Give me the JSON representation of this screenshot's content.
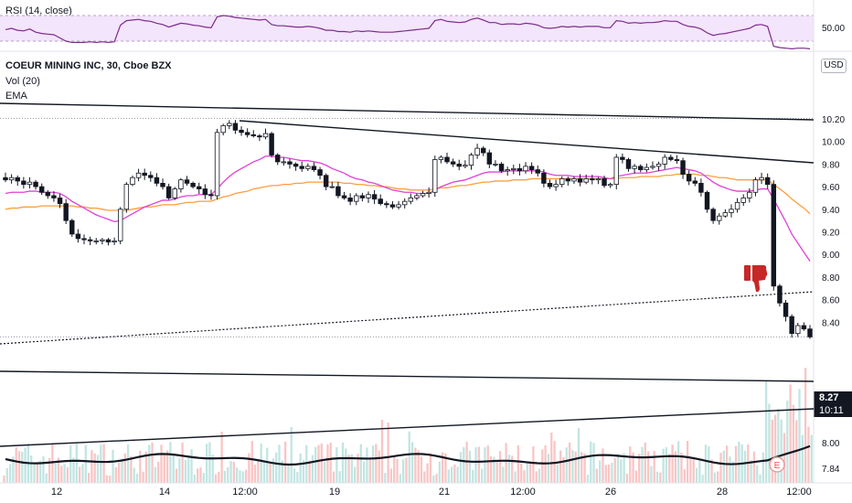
{
  "header": {
    "rsi_label": "RSI (14, close)",
    "title": "COEUR MINING INC, 30, Cboe BZX",
    "vol_label": "Vol (20)",
    "ema_label": "EMA"
  },
  "price_scale": {
    "currency": "USD",
    "rsi_tick": "50.00",
    "ticks": [
      "10.20",
      "10.00",
      "9.80",
      "9.60",
      "9.40",
      "9.20",
      "9.00",
      "8.80",
      "8.60",
      "8.40",
      "8.00",
      "7.84"
    ],
    "last_price": "8.27",
    "countdown": "10:11"
  },
  "time_axis": [
    "12",
    "14",
    "12:00",
    "19",
    "21",
    "12:00",
    "26",
    "28",
    "12:00"
  ],
  "markers": {
    "earnings": "E"
  },
  "colors": {
    "up": "#26a69a",
    "down": "#ef5350",
    "candle": "#131722",
    "ema_fast": "#e040d8",
    "ema_slow": "#ff9d3c",
    "rsi": "#7e2a8e",
    "rsi_band": "#f3e5fb",
    "thumb": "#c62828"
  },
  "chart_data": {
    "type": "candlestick",
    "symbol": "COEUR MINING INC",
    "interval": "30",
    "exchange": "Cboe BZX",
    "price_range": [
      7.8,
      10.3
    ],
    "last_price": 8.27,
    "closes": [
      9.66,
      9.68,
      9.65,
      9.62,
      9.64,
      9.6,
      9.55,
      9.52,
      9.5,
      9.45,
      9.3,
      9.18,
      9.14,
      9.13,
      9.12,
      9.12,
      9.13,
      9.11,
      9.12,
      9.4,
      9.62,
      9.68,
      9.72,
      9.7,
      9.68,
      9.63,
      9.6,
      9.5,
      9.58,
      9.66,
      9.63,
      9.6,
      9.58,
      9.53,
      9.52,
      10.08,
      10.14,
      10.16,
      10.1,
      10.08,
      10.06,
      10.05,
      10.04,
      10.07,
      9.88,
      9.82,
      9.82,
      9.8,
      9.78,
      9.76,
      9.78,
      9.75,
      9.7,
      9.6,
      9.6,
      9.52,
      9.5,
      9.47,
      9.52,
      9.5,
      9.53,
      9.49,
      9.45,
      9.44,
      9.42,
      9.44,
      9.47,
      9.5,
      9.52,
      9.54,
      9.55,
      9.84,
      9.86,
      9.82,
      9.8,
      9.78,
      9.79,
      9.88,
      9.94,
      9.9,
      9.8,
      9.8,
      9.74,
      9.75,
      9.76,
      9.74,
      9.78,
      9.75,
      9.72,
      9.63,
      9.6,
      9.62,
      9.67,
      9.65,
      9.67,
      9.64,
      9.67,
      9.66,
      9.67,
      9.61,
      9.62,
      9.86,
      9.84,
      9.76,
      9.78,
      9.75,
      9.77,
      9.78,
      9.8,
      9.86,
      9.84,
      9.83,
      9.71,
      9.65,
      9.63,
      9.55,
      9.4,
      9.3,
      9.34,
      9.37,
      9.4,
      9.46,
      9.5,
      9.55,
      9.66,
      9.68,
      9.62,
      8.72,
      8.57,
      8.45,
      8.3,
      8.37,
      8.34,
      8.27
    ],
    "ema_fast": [
      9.54,
      9.55,
      9.55,
      9.55,
      9.56,
      9.56,
      9.55,
      9.55,
      9.55,
      9.54,
      9.51,
      9.47,
      9.44,
      9.41,
      9.38,
      9.35,
      9.33,
      9.31,
      9.29,
      9.3,
      9.33,
      9.36,
      9.39,
      9.42,
      9.44,
      9.46,
      9.48,
      9.48,
      9.49,
      9.51,
      9.52,
      9.52,
      9.53,
      9.53,
      9.53,
      9.58,
      9.64,
      9.69,
      9.73,
      9.76,
      9.79,
      9.82,
      9.84,
      9.87,
      9.87,
      9.86,
      9.86,
      9.85,
      9.84,
      9.83,
      9.83,
      9.82,
      9.81,
      9.79,
      9.76,
      9.74,
      9.72,
      9.69,
      9.67,
      9.66,
      9.64,
      9.63,
      9.61,
      9.59,
      9.57,
      9.56,
      9.55,
      9.55,
      9.54,
      9.54,
      9.54,
      9.57,
      9.6,
      9.62,
      9.64,
      9.65,
      9.66,
      9.68,
      9.7,
      9.72,
      9.73,
      9.73,
      9.73,
      9.74,
      9.74,
      9.74,
      9.74,
      9.74,
      9.74,
      9.73,
      9.71,
      9.7,
      9.7,
      9.7,
      9.69,
      9.69,
      9.69,
      9.69,
      9.69,
      9.68,
      9.67,
      9.69,
      9.7,
      9.71,
      9.72,
      9.72,
      9.72,
      9.73,
      9.74,
      9.75,
      9.76,
      9.77,
      9.76,
      9.75,
      9.74,
      9.72,
      9.68,
      9.64,
      9.61,
      9.59,
      9.57,
      9.56,
      9.56,
      9.56,
      9.57,
      9.58,
      9.58,
      9.49,
      9.39,
      9.29,
      9.18,
      9.1,
      9.02,
      8.94
    ],
    "ema_slow": [
      9.4,
      9.41,
      9.41,
      9.42,
      9.42,
      9.42,
      9.43,
      9.43,
      9.43,
      9.43,
      9.43,
      9.43,
      9.42,
      9.42,
      9.41,
      9.41,
      9.4,
      9.39,
      9.39,
      9.39,
      9.39,
      9.4,
      9.41,
      9.42,
      9.42,
      9.43,
      9.44,
      9.44,
      9.44,
      9.45,
      9.46,
      9.46,
      9.47,
      9.47,
      9.47,
      9.49,
      9.51,
      9.52,
      9.54,
      9.55,
      9.56,
      9.58,
      9.59,
      9.6,
      9.61,
      9.61,
      9.62,
      9.62,
      9.63,
      9.63,
      9.64,
      9.64,
      9.64,
      9.64,
      9.64,
      9.64,
      9.63,
      9.63,
      9.62,
      9.62,
      9.61,
      9.61,
      9.6,
      9.6,
      9.59,
      9.58,
      9.58,
      9.57,
      9.57,
      9.57,
      9.57,
      9.58,
      9.59,
      9.59,
      9.6,
      9.61,
      9.61,
      9.62,
      9.63,
      9.64,
      9.64,
      9.65,
      9.65,
      9.65,
      9.66,
      9.66,
      9.66,
      9.67,
      9.67,
      9.67,
      9.67,
      9.67,
      9.67,
      9.67,
      9.67,
      9.67,
      9.67,
      9.67,
      9.67,
      9.67,
      9.67,
      9.67,
      9.68,
      9.68,
      9.68,
      9.69,
      9.69,
      9.69,
      9.69,
      9.7,
      9.7,
      9.71,
      9.71,
      9.71,
      9.71,
      9.7,
      9.7,
      9.69,
      9.68,
      9.68,
      9.67,
      9.66,
      9.66,
      9.66,
      9.66,
      9.66,
      9.66,
      9.62,
      9.58,
      9.54,
      9.49,
      9.45,
      9.41,
      9.36
    ],
    "rsi_range": [
      20,
      80
    ],
    "rsi_overbought": 70,
    "rsi_oversold": 30,
    "rsi": [
      48,
      50,
      47,
      46,
      49,
      44,
      42,
      41,
      40,
      35,
      30,
      28,
      28,
      28,
      29,
      28,
      29,
      28,
      29,
      55,
      62,
      63,
      64,
      62,
      61,
      58,
      56,
      52,
      55,
      58,
      57,
      55,
      54,
      52,
      51,
      68,
      70,
      69,
      67,
      66,
      65,
      64,
      63,
      64,
      56,
      54,
      54,
      53,
      52,
      52,
      53,
      52,
      50,
      47,
      47,
      45,
      45,
      44,
      46,
      45,
      46,
      45,
      44,
      44,
      44,
      45,
      46,
      47,
      48,
      49,
      50,
      62,
      64,
      61,
      60,
      59,
      60,
      64,
      66,
      63,
      59,
      59,
      56,
      57,
      57,
      56,
      58,
      57,
      55,
      51,
      50,
      51,
      53,
      52,
      53,
      52,
      53,
      53,
      53,
      51,
      51,
      62,
      61,
      58,
      59,
      58,
      59,
      59,
      60,
      62,
      61,
      61,
      56,
      53,
      52,
      49,
      43,
      39,
      41,
      42,
      44,
      46,
      48,
      50,
      55,
      56,
      53,
      22,
      20,
      19,
      18,
      19,
      19,
      18
    ]
  }
}
